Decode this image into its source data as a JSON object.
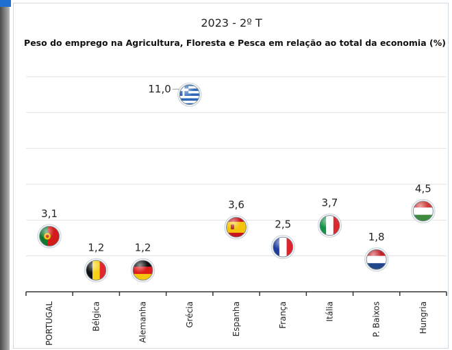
{
  "chart_data": {
    "type": "scatter",
    "title": "2023 - 2º T",
    "subtitle": "Peso do emprego na Agricultura, Floresta e Pesca em relação ao total da economia (%)",
    "categories": [
      "PORTUGAL",
      "Bélgica",
      "Alemanha",
      "Grécia",
      "Espanha",
      "França",
      "Itália",
      "P. Baixos",
      "Hungria"
    ],
    "values": [
      3.1,
      1.2,
      1.2,
      11.0,
      3.6,
      2.5,
      3.7,
      1.8,
      4.5
    ],
    "labels": [
      "3,1",
      "1,2",
      "1,2",
      "11,0",
      "3,6",
      "2,5",
      "3,7",
      "1,8",
      "4,5"
    ],
    "markers": [
      "flag-portugal",
      "flag-belgium",
      "flag-germany",
      "flag-greece",
      "flag-spain",
      "flag-france",
      "flag-italy",
      "flag-netherlands",
      "flag-hungary"
    ],
    "ylim": [
      0,
      12
    ],
    "grid": true,
    "xlabel": "",
    "ylabel": ""
  }
}
